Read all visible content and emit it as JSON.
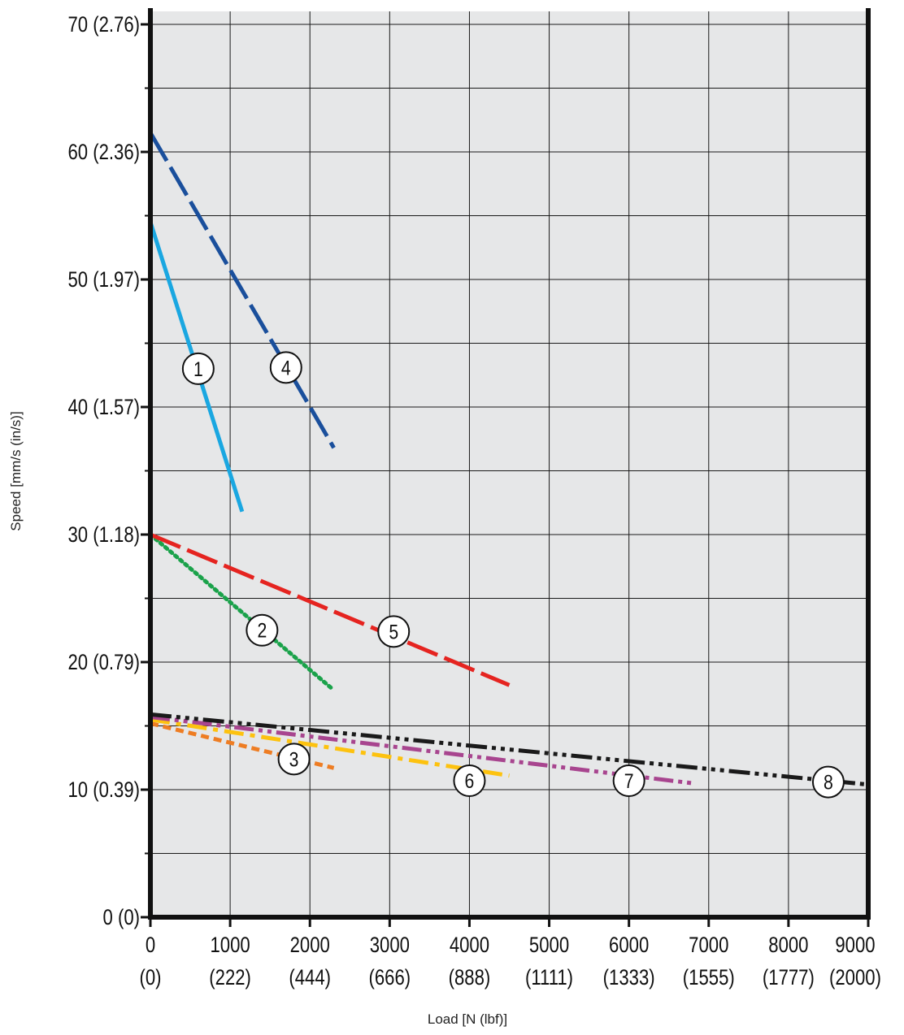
{
  "chart_data": {
    "type": "line",
    "title": "",
    "xlabel": "Load [N (lbf)]",
    "ylabel": "Speed [mm/s (in/s)]",
    "xlim": [
      0,
      9000
    ],
    "ylim": [
      0,
      70
    ],
    "grid": true,
    "background": "#e6e7e8",
    "x_ticks": [
      {
        "value": 0,
        "label": "0",
        "sublabel": "(0)"
      },
      {
        "value": 1000,
        "label": "1000",
        "sublabel": "(222)"
      },
      {
        "value": 2000,
        "label": "2000",
        "sublabel": "(444)"
      },
      {
        "value": 3000,
        "label": "3000",
        "sublabel": "(666)"
      },
      {
        "value": 4000,
        "label": "4000",
        "sublabel": "(888)"
      },
      {
        "value": 5000,
        "label": "5000",
        "sublabel": "(1111)"
      },
      {
        "value": 6000,
        "label": "6000",
        "sublabel": "(1333)"
      },
      {
        "value": 7000,
        "label": "7000",
        "sublabel": "(1555)"
      },
      {
        "value": 8000,
        "label": "8000",
        "sublabel": "(1777)"
      },
      {
        "value": 9000,
        "label": "9000",
        "sublabel": "(2000)"
      }
    ],
    "y_ticks": [
      {
        "value": 0,
        "label": "0 (0)"
      },
      {
        "value": 10,
        "label": "10 (0.39)"
      },
      {
        "value": 20,
        "label": "20 (0.79)"
      },
      {
        "value": 30,
        "label": "30 (1.18)"
      },
      {
        "value": 40,
        "label": "40 (1.57)"
      },
      {
        "value": 50,
        "label": "50 (1.97)"
      },
      {
        "value": 60,
        "label": "60 (2.36)"
      },
      {
        "value": 70,
        "label": "70 (2.76)"
      }
    ],
    "series": [
      {
        "marker": "1",
        "color": "#1aa7e1",
        "dash": "solid",
        "x": [
          0,
          1150
        ],
        "y": [
          54.5,
          31.8
        ],
        "label_at": [
          600,
          43
        ]
      },
      {
        "marker": "2",
        "color": "#1aa24a",
        "dash": "dotted",
        "x": [
          0,
          2300
        ],
        "y": [
          30,
          17.8
        ],
        "label_at": [
          1400,
          22.5
        ]
      },
      {
        "marker": "3",
        "color": "#ee7d23",
        "dash": "dash",
        "x": [
          0,
          2300
        ],
        "y": [
          15.2,
          11.7
        ],
        "label_at": [
          1800,
          12.4
        ]
      },
      {
        "marker": "4",
        "color": "#1a4f9c",
        "dash": "longdash",
        "x": [
          0,
          2300
        ],
        "y": [
          61.5,
          36.8
        ],
        "label_at": [
          1700,
          43.1
        ]
      },
      {
        "marker": "5",
        "color": "#e52420",
        "dash": "longdash",
        "x": [
          0,
          4500
        ],
        "y": [
          30,
          18.2
        ],
        "label_at": [
          3050,
          22.4
        ]
      },
      {
        "marker": "6",
        "color": "#fdc20f",
        "dash": "dashdot",
        "x": [
          0,
          4500
        ],
        "y": [
          15.5,
          11.1
        ],
        "label_at": [
          4000,
          10.7
        ]
      },
      {
        "marker": "7",
        "color": "#a8458f",
        "dash": "dashdotdot",
        "x": [
          0,
          6800
        ],
        "y": [
          15.7,
          10.5
        ],
        "label_at": [
          6000,
          10.7
        ]
      },
      {
        "marker": "8",
        "color": "#1a1a1a",
        "dash": "dashdotdotdot",
        "x": [
          0,
          9000
        ],
        "y": [
          15.9,
          10.4
        ],
        "label_at": [
          8500,
          10.6
        ]
      }
    ]
  }
}
